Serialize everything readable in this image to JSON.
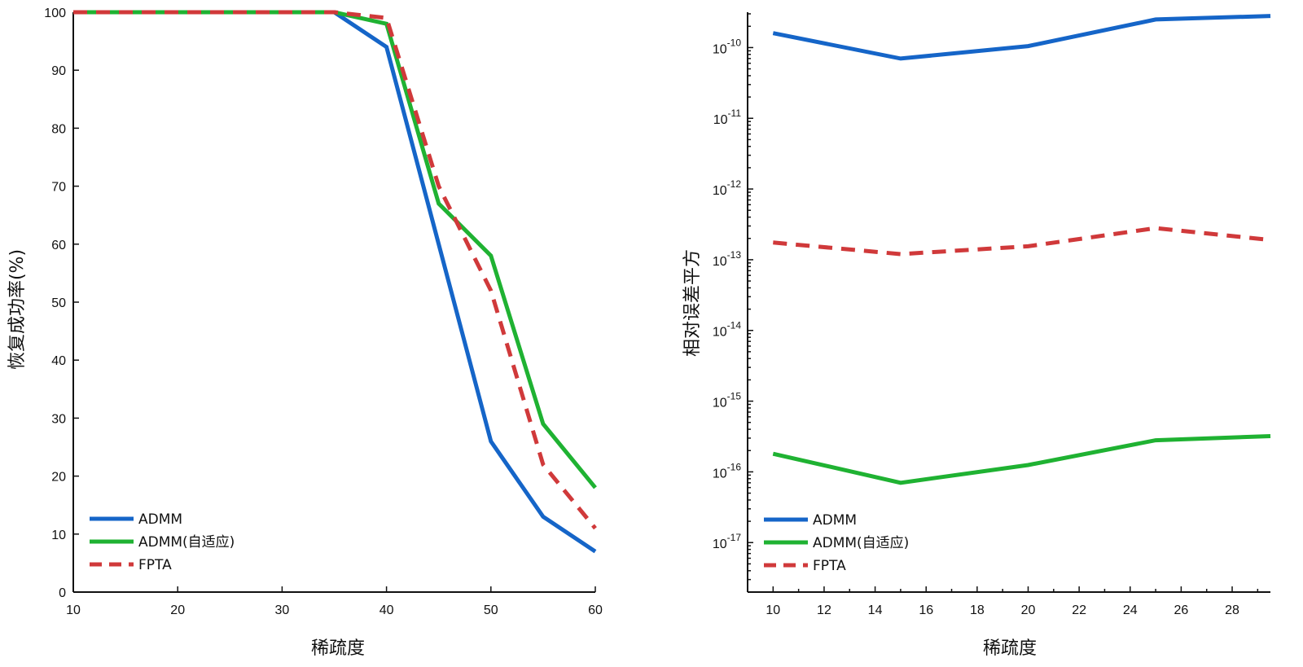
{
  "chart_data": [
    {
      "type": "line",
      "xlabel": "稀疏度",
      "ylabel": "恢复成功率(%)",
      "xlim": [
        10,
        60
      ],
      "ylim": [
        0,
        100
      ],
      "xticks": [
        10,
        20,
        30,
        40,
        50,
        60
      ],
      "yticks": [
        0,
        10,
        20,
        30,
        40,
        50,
        60,
        70,
        80,
        90,
        100
      ],
      "legend_position": "bottom-left",
      "series": [
        {
          "name": "ADMM",
          "color": "#1565c8",
          "dash": "solid",
          "x": [
            10,
            15,
            20,
            25,
            30,
            35,
            40,
            45,
            50,
            55,
            60
          ],
          "y": [
            100,
            100,
            100,
            100,
            100,
            100,
            94,
            60,
            26,
            13,
            7
          ]
        },
        {
          "name": "ADMM(自适应)",
          "color": "#1fb232",
          "dash": "solid",
          "x": [
            10,
            15,
            20,
            25,
            30,
            35,
            40,
            45,
            50,
            55,
            60
          ],
          "y": [
            100,
            100,
            100,
            100,
            100,
            100,
            98,
            67,
            58,
            29,
            18
          ]
        },
        {
          "name": "FPTA",
          "color": "#d0393a",
          "dash": "dashed",
          "x": [
            10,
            15,
            20,
            25,
            30,
            35,
            40,
            45,
            50,
            55,
            60
          ],
          "y": [
            100,
            100,
            100,
            100,
            100,
            100,
            99,
            70,
            52,
            22,
            11
          ]
        }
      ]
    },
    {
      "type": "line",
      "xlabel": "稀疏度",
      "ylabel": "相对误差平方",
      "yscale": "log",
      "xlim": [
        9,
        29.5
      ],
      "ylim_exponent": [
        -17.7,
        -9.5
      ],
      "xticks": [
        10,
        12,
        14,
        16,
        18,
        20,
        22,
        24,
        26,
        28
      ],
      "yticks": [
        {
          "base": "10",
          "exp": "-10"
        },
        {
          "base": "10",
          "exp": "-11"
        },
        {
          "base": "10",
          "exp": "-12"
        },
        {
          "base": "10",
          "exp": "-13"
        },
        {
          "base": "10",
          "exp": "-14"
        },
        {
          "base": "10",
          "exp": "-15"
        },
        {
          "base": "10",
          "exp": "-16"
        },
        {
          "base": "10",
          "exp": "-17"
        }
      ],
      "legend_position": "bottom-left",
      "series": [
        {
          "name": "ADMM",
          "color": "#1565c8",
          "dash": "solid",
          "x": [
            10,
            15,
            20,
            25,
            29.5
          ],
          "y": [
            1.6e-10,
            7e-11,
            1.05e-10,
            2.5e-10,
            2.8e-10
          ]
        },
        {
          "name": "ADMM(自适应)",
          "color": "#1fb232",
          "dash": "solid",
          "x": [
            10,
            15,
            20,
            25,
            29.5
          ],
          "y": [
            1.8e-16,
            7e-17,
            1.25e-16,
            2.8e-16,
            3.2e-16
          ]
        },
        {
          "name": "FPTA",
          "color": "#d0393a",
          "dash": "dashed",
          "x": [
            10,
            15,
            20,
            25,
            29.5
          ],
          "y": [
            1.75e-13,
            1.2e-13,
            1.55e-13,
            2.8e-13,
            1.9e-13
          ]
        }
      ]
    }
  ]
}
